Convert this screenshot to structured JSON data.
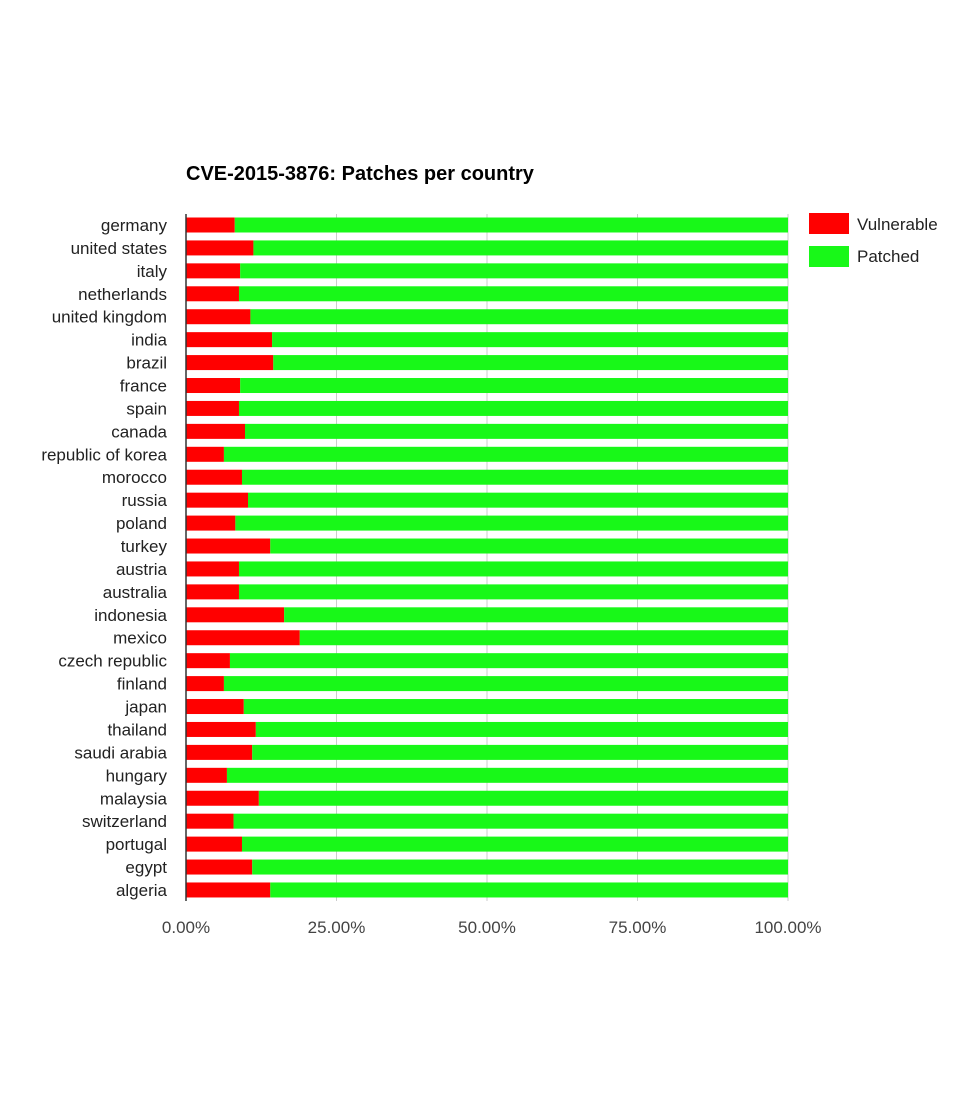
{
  "colors": {
    "vulnerable": "#ff0000",
    "patched": "#18f818",
    "grid": "#cccccc",
    "axis": "#333333"
  },
  "chart_data": {
    "type": "bar",
    "orientation": "horizontal",
    "stacked": true,
    "title": "CVE-2015-3876: Patches per country",
    "categories": [
      "germany",
      "united states",
      "italy",
      "netherlands",
      "united kingdom",
      "india",
      "brazil",
      "france",
      "spain",
      "canada",
      "republic of korea",
      "morocco",
      "russia",
      "poland",
      "turkey",
      "austria",
      "australia",
      "indonesia",
      "mexico",
      "czech republic",
      "finland",
      "japan",
      "thailand",
      "saudi arabia",
      "hungary",
      "malaysia",
      "switzerland",
      "portugal",
      "egypt",
      "algeria"
    ],
    "series": [
      {
        "name": "Vulnerable",
        "values": [
          8.1,
          11.2,
          9.0,
          8.8,
          10.7,
          14.3,
          14.5,
          9.0,
          8.8,
          9.8,
          6.3,
          9.3,
          10.3,
          8.2,
          14.0,
          8.8,
          8.8,
          16.3,
          18.9,
          7.3,
          6.3,
          9.6,
          11.6,
          11.0,
          6.8,
          12.1,
          7.9,
          9.3,
          11.0,
          14.0
        ]
      },
      {
        "name": "Patched",
        "values": [
          91.9,
          88.8,
          91.0,
          91.2,
          89.3,
          85.7,
          85.5,
          91.0,
          91.2,
          90.2,
          93.7,
          90.7,
          89.7,
          91.8,
          86.0,
          91.2,
          91.2,
          83.7,
          81.1,
          92.7,
          93.7,
          90.4,
          88.4,
          89.0,
          93.2,
          87.9,
          92.1,
          90.7,
          89.0,
          86.0
        ]
      }
    ],
    "xlim": [
      0,
      100
    ],
    "x_ticks": [
      "0.00%",
      "25.00%",
      "50.00%",
      "75.00%",
      "100.00%"
    ],
    "x_tick_values": [
      0,
      25,
      50,
      75,
      100
    ],
    "grid": true,
    "legend": "right"
  }
}
